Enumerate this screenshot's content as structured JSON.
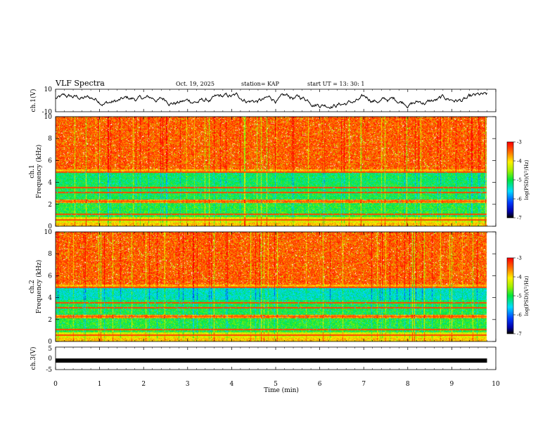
{
  "header": {
    "title": "VLF Spectra",
    "date": "Oct. 19, 2025",
    "station": "station= KAP",
    "start_ut": "start  UT  =   13: 30: 1"
  },
  "chart_data": [
    {
      "type": "line",
      "name": "ch1-waveform",
      "ylabel": "ch.1(V)",
      "ylim": [
        -10,
        10
      ],
      "yticks": [
        "10",
        "-10"
      ],
      "x_range_min": [
        0,
        9.8
      ]
    },
    {
      "type": "heatmap",
      "name": "ch1-spectrogram",
      "ylabel_line1": "ch.1",
      "ylabel_line2": "Frequency  (kHz)",
      "ylim": [
        0,
        10
      ],
      "yticks": [
        "0",
        "2",
        "4",
        "6",
        "8",
        "10"
      ],
      "colorbar": {
        "label": "log(PSD)(V²/Hz)",
        "range": [
          -7,
          -3
        ],
        "ticks": [
          "-3",
          "-4",
          "-5",
          "-6",
          "-7"
        ]
      }
    },
    {
      "type": "heatmap",
      "name": "ch2-spectrogram",
      "ylabel_line1": "ch.2",
      "ylabel_line2": "Frequency  (kHz)",
      "ylim": [
        0,
        10
      ],
      "yticks": [
        "0",
        "2",
        "4",
        "6",
        "8",
        "10"
      ],
      "colorbar": {
        "label": "log(PSD)(V²/Hz)",
        "range": [
          -7,
          -3
        ],
        "ticks": [
          "-3",
          "-4",
          "-5",
          "-6",
          "-7"
        ]
      }
    },
    {
      "type": "line",
      "name": "ch3-signal",
      "ylabel": "ch.3(V)",
      "ylim": [
        -5,
        5
      ],
      "yticks": [
        "5",
        "0",
        "-5"
      ],
      "level": -1
    }
  ],
  "x_axis": {
    "label": "Time  (min)",
    "ticks": [
      "0",
      "1",
      "2",
      "3",
      "4",
      "5",
      "6",
      "7",
      "8",
      "9",
      "10"
    ],
    "range": [
      0,
      10
    ]
  }
}
